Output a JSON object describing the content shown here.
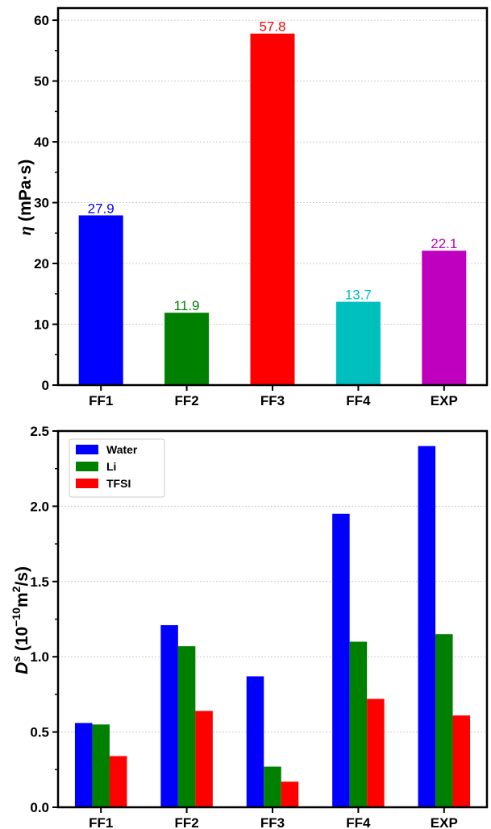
{
  "chart_data": [
    {
      "type": "bar",
      "categories": [
        "FF1",
        "FF2",
        "FF3",
        "FF4",
        "EXP"
      ],
      "values": [
        27.9,
        11.9,
        57.8,
        13.7,
        22.1
      ],
      "data_labels": [
        "27.9",
        "11.9",
        "57.8",
        "13.7",
        "22.1"
      ],
      "colors": [
        "#0000ff",
        "#008000",
        "#ff0000",
        "#00bfbf",
        "#bf00bf"
      ],
      "ylabel_symbol": "η",
      "ylabel_units": " (mPa·s)",
      "ylim": [
        0,
        62
      ],
      "yticks": [
        0,
        10,
        20,
        30,
        40,
        50,
        60
      ],
      "ytick_labels": [
        "0",
        "10",
        "20",
        "30",
        "40",
        "50",
        "60"
      ],
      "grid": true
    },
    {
      "type": "bar",
      "categories": [
        "FF1",
        "FF2",
        "FF3",
        "FF4",
        "EXP"
      ],
      "series": [
        {
          "name": "Water",
          "color": "#0000ff",
          "values": [
            0.56,
            1.21,
            0.87,
            1.95,
            2.4
          ]
        },
        {
          "name": "Li",
          "color": "#008000",
          "values": [
            0.55,
            1.07,
            0.27,
            1.1,
            1.15
          ]
        },
        {
          "name": "TFSI",
          "color": "#ff0000",
          "values": [
            0.34,
            0.64,
            0.17,
            0.72,
            0.61
          ]
        }
      ],
      "ylabel_base": "D",
      "ylabel_sup": "s",
      "ylabel_mid": " (10",
      "ylabel_exp": "−10",
      "ylabel_unit": "m",
      "ylabel_unit_exp": "2",
      "ylabel_end": "/s)",
      "ylim": [
        0,
        2.5
      ],
      "yticks": [
        0,
        0.5,
        1.0,
        1.5,
        2.0,
        2.5
      ],
      "ytick_labels": [
        "0.0",
        "0.5",
        "1.0",
        "1.5",
        "2.0",
        "2.5"
      ],
      "legend_position": "top-left",
      "grid": true
    }
  ]
}
